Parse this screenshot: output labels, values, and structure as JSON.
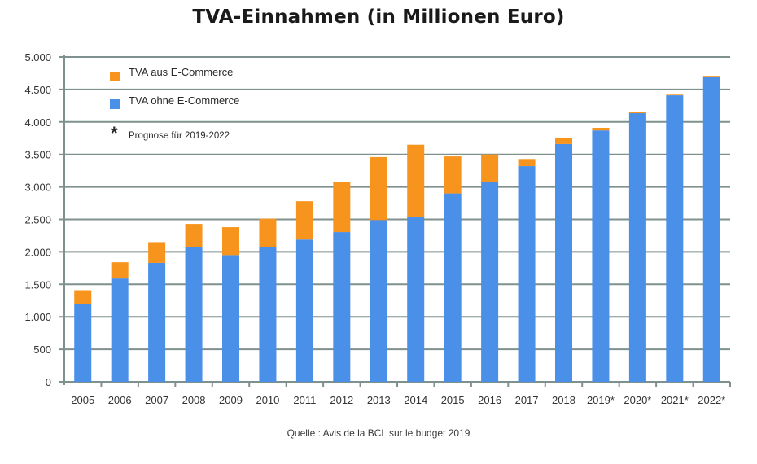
{
  "colors": {
    "ecommerce": "#F7941D",
    "non_ecommerce": "#4A8FE8",
    "grid": "#7F918E",
    "text": "#333333"
  },
  "source": "Quelle : Avis de la BCL sur le budget 2019",
  "chart_data": {
    "type": "bar",
    "stacked": true,
    "title": "TVA-Einnahmen (in Millionen Euro)",
    "xlabel": "",
    "ylabel": "",
    "ylim": [
      0,
      5000
    ],
    "yticks": [
      0,
      500,
      1000,
      1500,
      2000,
      2500,
      3000,
      3500,
      4000,
      4500,
      5000
    ],
    "ytick_labels": [
      "0",
      "500",
      "1.000",
      "1.500",
      "2.000",
      "2.500",
      "3.000",
      "3.500",
      "4.000",
      "4.500",
      "5.000"
    ],
    "grid": true,
    "legend_position": "top-left",
    "categories": [
      "2005",
      "2006",
      "2007",
      "2008",
      "2009",
      "2010",
      "2011",
      "2012",
      "2013",
      "2014",
      "2015",
      "2016",
      "2017",
      "2018",
      "2019*",
      "2020*",
      "2021*",
      "2022*"
    ],
    "series": [
      {
        "name": "TVA ohne E-Commerce",
        "color_key": "non_ecommerce",
        "values": [
          1200,
          1590,
          1830,
          2070,
          1950,
          2070,
          2190,
          2305,
          2490,
          2540,
          2900,
          3080,
          3320,
          3660,
          3870,
          4135,
          4410,
          4690
        ]
      },
      {
        "name": "TVA aus E-Commerce",
        "color_key": "ecommerce",
        "values": [
          210,
          250,
          320,
          360,
          430,
          440,
          590,
          775,
          970,
          1110,
          570,
          420,
          110,
          100,
          40,
          25,
          10,
          20
        ]
      }
    ],
    "legend": [
      {
        "label": "TVA aus E-Commerce",
        "color_key": "ecommerce"
      },
      {
        "label": "TVA ohne E-Commerce",
        "color_key": "non_ecommerce"
      }
    ],
    "annotation": {
      "symbol": "*",
      "text": "Prognose für 2019-2022"
    }
  }
}
